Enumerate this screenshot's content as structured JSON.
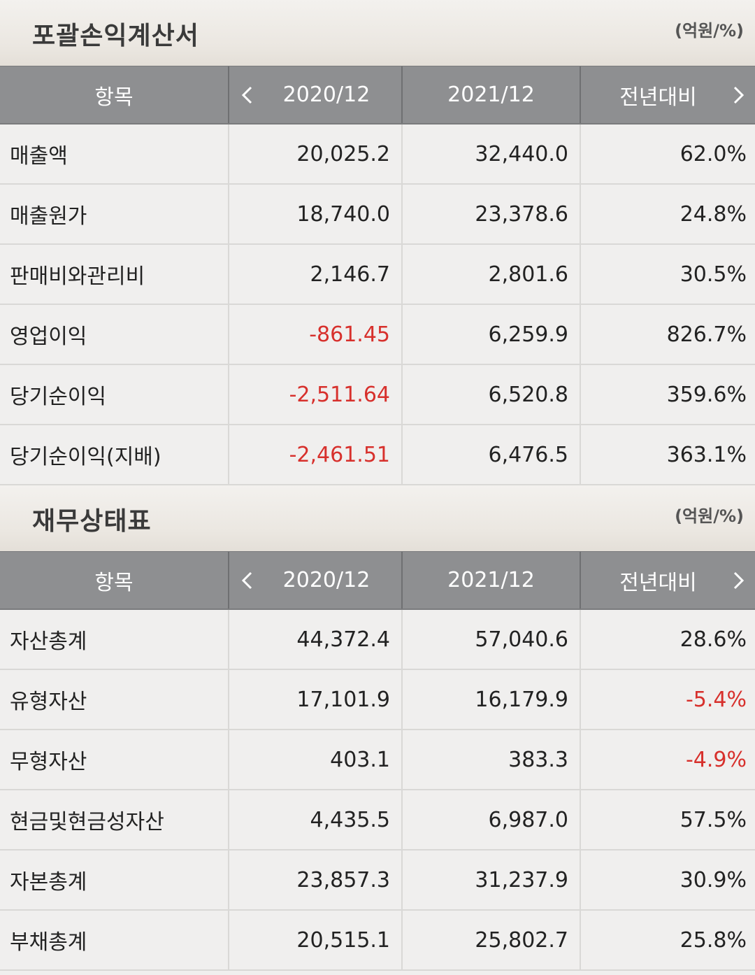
{
  "income": {
    "title": "포괄손익계산서",
    "unit": "(억원/%)",
    "headers": {
      "item": "항목",
      "col1": "2020/12",
      "col2": "2021/12",
      "col3": "전년대비"
    },
    "rows": [
      {
        "label": "매출액",
        "v1": "20,025.2",
        "v2": "32,440.0",
        "v3": "62.0%"
      },
      {
        "label": "매출원가",
        "v1": "18,740.0",
        "v2": "23,378.6",
        "v3": "24.8%"
      },
      {
        "label": "판매비와관리비",
        "v1": "2,146.7",
        "v2": "2,801.6",
        "v3": "30.5%"
      },
      {
        "label": "영업이익",
        "v1": "-861.45",
        "v2": "6,259.9",
        "v3": "826.7%"
      },
      {
        "label": "당기순이익",
        "v1": "-2,511.64",
        "v2": "6,520.8",
        "v3": "359.6%"
      },
      {
        "label": "당기순이익(지배)",
        "v1": "-2,461.51",
        "v2": "6,476.5",
        "v3": "363.1%"
      }
    ]
  },
  "balance": {
    "title": "재무상태표",
    "unit": "(억원/%)",
    "headers": {
      "item": "항목",
      "col1": "2020/12",
      "col2": "2021/12",
      "col3": "전년대비"
    },
    "rows": [
      {
        "label": "자산총계",
        "v1": "44,372.4",
        "v2": "57,040.6",
        "v3": "28.6%"
      },
      {
        "label": "유형자산",
        "v1": "17,101.9",
        "v2": "16,179.9",
        "v3": "-5.4%"
      },
      {
        "label": "무형자산",
        "v1": "403.1",
        "v2": "383.3",
        "v3": "-4.9%"
      },
      {
        "label": "현금및현금성자산",
        "v1": "4,435.5",
        "v2": "6,987.0",
        "v3": "57.5%"
      },
      {
        "label": "자본총계",
        "v1": "23,857.3",
        "v2": "31,237.9",
        "v3": "30.9%"
      },
      {
        "label": "부채총계",
        "v1": "20,515.1",
        "v2": "25,802.7",
        "v3": "25.8%"
      }
    ]
  },
  "colors": {
    "header_bg": "#8e8f91",
    "negative": "#d7302c",
    "row_bg": "#f0efee"
  },
  "icons": {
    "prev": "chevron-left-icon",
    "next": "chevron-right-icon"
  }
}
